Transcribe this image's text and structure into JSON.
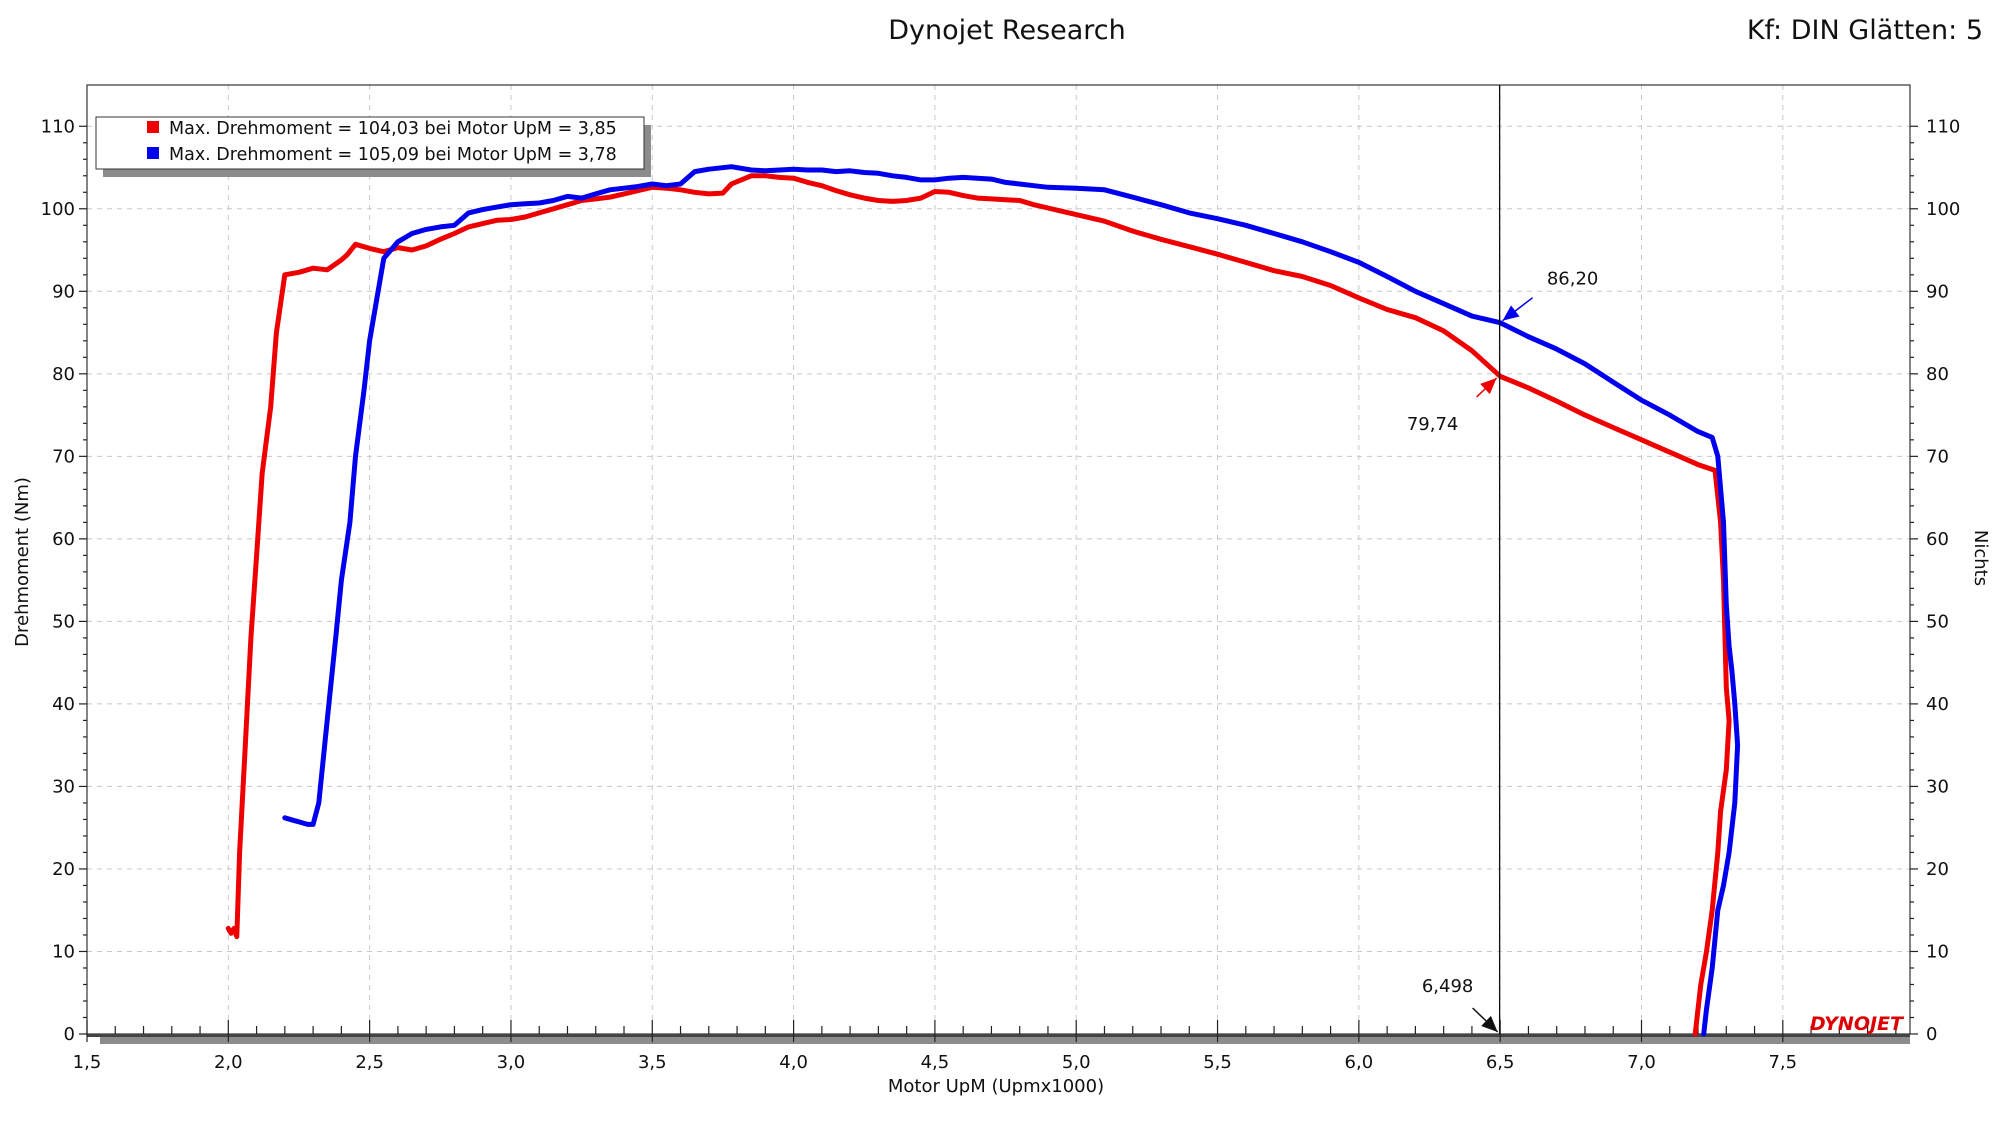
{
  "header": {
    "title": "Dynojet Research",
    "right_info": "Kf: DIN Glätten: 5",
    "logo_text": "DYNOJET"
  },
  "chart_data": {
    "type": "line",
    "title": "Dynojet Research",
    "xlabel": "Motor UpM (Upmx1000)",
    "ylabel": "Drehmoment (Nm)",
    "y2label": "Nichts",
    "xlim": [
      1.5,
      7.95
    ],
    "ylim": [
      0,
      115
    ],
    "x_ticks": [
      1.5,
      2.0,
      2.5,
      3.0,
      3.5,
      4.0,
      4.5,
      5.0,
      5.5,
      6.0,
      6.5,
      7.0,
      7.5
    ],
    "x_tick_labels": [
      "1,5",
      "2,0",
      "2,5",
      "3,0",
      "3,5",
      "4,0",
      "4,5",
      "5,0",
      "5,5",
      "6,0",
      "6,5",
      "7,0",
      "7,5"
    ],
    "y_ticks": [
      0,
      10,
      20,
      30,
      40,
      50,
      60,
      70,
      80,
      90,
      100,
      110
    ],
    "y_tick_labels": [
      "0",
      "10",
      "20",
      "30",
      "40",
      "50",
      "60",
      "70",
      "80",
      "90",
      "100",
      "110"
    ],
    "grid": true,
    "legend_position": "top-left",
    "series": [
      {
        "legend_label": "Max. Drehmoment = 104,03 bei Motor UpM = 3,85",
        "color": "#ee0000",
        "points": [
          [
            2.0,
            12.8
          ],
          [
            2.01,
            12.2
          ],
          [
            2.02,
            12.8
          ],
          [
            2.03,
            11.8
          ],
          [
            2.04,
            22
          ],
          [
            2.06,
            35
          ],
          [
            2.08,
            48
          ],
          [
            2.1,
            58
          ],
          [
            2.12,
            68
          ],
          [
            2.15,
            76
          ],
          [
            2.17,
            85
          ],
          [
            2.2,
            92
          ],
          [
            2.25,
            92.3
          ],
          [
            2.3,
            92.8
          ],
          [
            2.35,
            92.6
          ],
          [
            2.4,
            93.8
          ],
          [
            2.42,
            94.4
          ],
          [
            2.45,
            95.7
          ],
          [
            2.5,
            95.2
          ],
          [
            2.55,
            94.8
          ],
          [
            2.6,
            95.3
          ],
          [
            2.65,
            95.0
          ],
          [
            2.7,
            95.5
          ],
          [
            2.75,
            96.3
          ],
          [
            2.8,
            97.0
          ],
          [
            2.85,
            97.8
          ],
          [
            2.9,
            98.2
          ],
          [
            2.95,
            98.6
          ],
          [
            3.0,
            98.7
          ],
          [
            3.05,
            99.0
          ],
          [
            3.1,
            99.5
          ],
          [
            3.15,
            100.0
          ],
          [
            3.2,
            100.5
          ],
          [
            3.25,
            101.0
          ],
          [
            3.3,
            101.2
          ],
          [
            3.35,
            101.4
          ],
          [
            3.4,
            101.8
          ],
          [
            3.45,
            102.2
          ],
          [
            3.5,
            102.6
          ],
          [
            3.55,
            102.5
          ],
          [
            3.6,
            102.3
          ],
          [
            3.65,
            102.0
          ],
          [
            3.7,
            101.8
          ],
          [
            3.75,
            101.9
          ],
          [
            3.78,
            103.0
          ],
          [
            3.85,
            104.0
          ],
          [
            3.9,
            104.0
          ],
          [
            3.95,
            103.8
          ],
          [
            4.0,
            103.7
          ],
          [
            4.05,
            103.2
          ],
          [
            4.1,
            102.8
          ],
          [
            4.15,
            102.2
          ],
          [
            4.2,
            101.7
          ],
          [
            4.25,
            101.3
          ],
          [
            4.3,
            101.0
          ],
          [
            4.35,
            100.9
          ],
          [
            4.4,
            101.0
          ],
          [
            4.45,
            101.3
          ],
          [
            4.5,
            102.1
          ],
          [
            4.55,
            102.0
          ],
          [
            4.6,
            101.6
          ],
          [
            4.65,
            101.3
          ],
          [
            4.7,
            101.2
          ],
          [
            4.75,
            101.1
          ],
          [
            4.8,
            101.0
          ],
          [
            4.85,
            100.5
          ],
          [
            4.9,
            100.1
          ],
          [
            4.95,
            99.7
          ],
          [
            5.0,
            99.3
          ],
          [
            5.1,
            98.5
          ],
          [
            5.2,
            97.3
          ],
          [
            5.3,
            96.3
          ],
          [
            5.4,
            95.4
          ],
          [
            5.5,
            94.5
          ],
          [
            5.6,
            93.5
          ],
          [
            5.7,
            92.5
          ],
          [
            5.8,
            91.8
          ],
          [
            5.9,
            90.7
          ],
          [
            6.0,
            89.2
          ],
          [
            6.1,
            87.8
          ],
          [
            6.2,
            86.8
          ],
          [
            6.3,
            85.2
          ],
          [
            6.4,
            82.8
          ],
          [
            6.5,
            79.7
          ],
          [
            6.6,
            78.3
          ],
          [
            6.7,
            76.7
          ],
          [
            6.8,
            75.0
          ],
          [
            6.9,
            73.5
          ],
          [
            7.0,
            72.0
          ],
          [
            7.1,
            70.5
          ],
          [
            7.2,
            69.0
          ],
          [
            7.26,
            68.3
          ],
          [
            7.28,
            62
          ],
          [
            7.29,
            55
          ],
          [
            7.3,
            42
          ],
          [
            7.31,
            38
          ],
          [
            7.3,
            32
          ],
          [
            7.28,
            27
          ],
          [
            7.27,
            22
          ],
          [
            7.25,
            15
          ],
          [
            7.23,
            10
          ],
          [
            7.21,
            6
          ],
          [
            7.19,
            0
          ]
        ]
      },
      {
        "legend_label": "Max. Drehmoment = 105,09 bei Motor UpM = 3,78",
        "color": "#0000ee",
        "points": [
          [
            2.2,
            26.2
          ],
          [
            2.23,
            25.9
          ],
          [
            2.25,
            25.7
          ],
          [
            2.28,
            25.4
          ],
          [
            2.3,
            25.4
          ],
          [
            2.32,
            28
          ],
          [
            2.35,
            38
          ],
          [
            2.38,
            48
          ],
          [
            2.4,
            55
          ],
          [
            2.43,
            62
          ],
          [
            2.45,
            70
          ],
          [
            2.48,
            78
          ],
          [
            2.5,
            84
          ],
          [
            2.53,
            90
          ],
          [
            2.55,
            94
          ],
          [
            2.6,
            96.0
          ],
          [
            2.65,
            97.0
          ],
          [
            2.7,
            97.5
          ],
          [
            2.75,
            97.8
          ],
          [
            2.8,
            98.0
          ],
          [
            2.85,
            99.5
          ],
          [
            2.9,
            99.9
          ],
          [
            2.95,
            100.2
          ],
          [
            3.0,
            100.5
          ],
          [
            3.05,
            100.6
          ],
          [
            3.1,
            100.7
          ],
          [
            3.15,
            101.0
          ],
          [
            3.2,
            101.5
          ],
          [
            3.25,
            101.3
          ],
          [
            3.3,
            101.8
          ],
          [
            3.35,
            102.3
          ],
          [
            3.4,
            102.5
          ],
          [
            3.45,
            102.7
          ],
          [
            3.5,
            103.0
          ],
          [
            3.55,
            102.8
          ],
          [
            3.6,
            103.0
          ],
          [
            3.65,
            104.5
          ],
          [
            3.7,
            104.8
          ],
          [
            3.78,
            105.1
          ],
          [
            3.85,
            104.7
          ],
          [
            3.9,
            104.6
          ],
          [
            3.95,
            104.7
          ],
          [
            4.0,
            104.8
          ],
          [
            4.05,
            104.7
          ],
          [
            4.1,
            104.7
          ],
          [
            4.15,
            104.5
          ],
          [
            4.2,
            104.6
          ],
          [
            4.25,
            104.4
          ],
          [
            4.3,
            104.3
          ],
          [
            4.35,
            104.0
          ],
          [
            4.4,
            103.8
          ],
          [
            4.45,
            103.5
          ],
          [
            4.5,
            103.5
          ],
          [
            4.55,
            103.7
          ],
          [
            4.6,
            103.8
          ],
          [
            4.7,
            103.6
          ],
          [
            4.75,
            103.2
          ],
          [
            4.8,
            103.0
          ],
          [
            4.85,
            102.8
          ],
          [
            4.9,
            102.6
          ],
          [
            5.0,
            102.5
          ],
          [
            5.1,
            102.3
          ],
          [
            5.2,
            101.4
          ],
          [
            5.3,
            100.5
          ],
          [
            5.4,
            99.5
          ],
          [
            5.5,
            98.8
          ],
          [
            5.6,
            98.0
          ],
          [
            5.7,
            97.0
          ],
          [
            5.8,
            96.0
          ],
          [
            5.9,
            94.8
          ],
          [
            6.0,
            93.5
          ],
          [
            6.1,
            91.8
          ],
          [
            6.2,
            90.0
          ],
          [
            6.3,
            88.5
          ],
          [
            6.4,
            87.0
          ],
          [
            6.5,
            86.2
          ],
          [
            6.6,
            84.5
          ],
          [
            6.7,
            83.0
          ],
          [
            6.8,
            81.2
          ],
          [
            6.9,
            79.0
          ],
          [
            7.0,
            76.8
          ],
          [
            7.1,
            75.0
          ],
          [
            7.2,
            73.0
          ],
          [
            7.25,
            72.3
          ],
          [
            7.27,
            70
          ],
          [
            7.29,
            62
          ],
          [
            7.3,
            52
          ],
          [
            7.31,
            47
          ],
          [
            7.32,
            44
          ],
          [
            7.33,
            40
          ],
          [
            7.34,
            35
          ],
          [
            7.33,
            28
          ],
          [
            7.31,
            22
          ],
          [
            7.29,
            18
          ],
          [
            7.27,
            15
          ],
          [
            7.25,
            8
          ],
          [
            7.23,
            3
          ],
          [
            7.22,
            0
          ]
        ]
      }
    ],
    "cursor": {
      "x": 6.498,
      "x_label": "6,498",
      "readouts": [
        {
          "value": 86.2,
          "label": "86,20",
          "color": "#0000ee"
        },
        {
          "value": 79.74,
          "label": "79,74",
          "color": "#ee0000"
        }
      ]
    }
  }
}
